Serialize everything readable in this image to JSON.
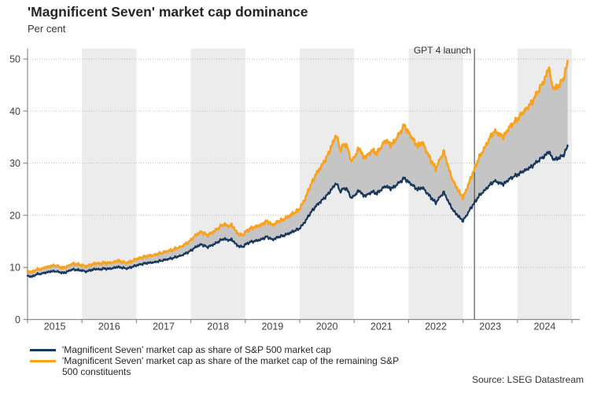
{
  "header": {
    "title": "'Magnificent Seven' market cap dominance",
    "subtitle": "Per cent"
  },
  "source": "Source: LSEG Datastream",
  "legend": [
    {
      "label": "'Magnificent Seven' market cap as share of S&P 500 market cap",
      "color": "#17375d"
    },
    {
      "label": "'Magnificent Seven' market cap as share of the market cap of the remaining S&P 500 constituents",
      "color": "#faa21c"
    }
  ],
  "chart_data": {
    "type": "line",
    "title": "'Magnificent Seven' market cap dominance",
    "ylabel": "Per cent",
    "x_range": [
      2015,
      2025
    ],
    "y_range": [
      0,
      52
    ],
    "y_ticks": [
      0,
      10,
      20,
      30,
      40,
      50
    ],
    "x_tick_labels": [
      "2015",
      "2016",
      "2017",
      "2018",
      "2019",
      "2020",
      "2021",
      "2022",
      "2023",
      "2024"
    ],
    "shaded_year_bands": [
      2016,
      2018,
      2020,
      2022,
      2024
    ],
    "grid": "dotted-horizontal",
    "legend_position": "bottom-left",
    "annotation": {
      "text": "GPT 4 launch",
      "x": 2023.21
    },
    "colors": {
      "band": "#ececec",
      "fill_between": "#c5c5c5",
      "grid": "#b9b9b9",
      "axis": "#8c8c8c",
      "tick_text": "#3f3f3f",
      "annotation_line": "#3a3a3a"
    },
    "render": {
      "noise_amplitude": [
        0.3,
        0.38
      ],
      "noise_step": 0.014
    },
    "series": [
      {
        "name": "'Magnificent Seven' market cap as share of S&P 500 market cap",
        "color": "#17375d",
        "points": [
          [
            2015.0,
            8.4
          ],
          [
            2015.08,
            8.2
          ],
          [
            2015.17,
            8.7
          ],
          [
            2015.25,
            8.8
          ],
          [
            2015.33,
            9.0
          ],
          [
            2015.42,
            9.2
          ],
          [
            2015.5,
            9.3
          ],
          [
            2015.58,
            9.1
          ],
          [
            2015.67,
            8.9
          ],
          [
            2015.75,
            9.3
          ],
          [
            2015.83,
            9.6
          ],
          [
            2015.92,
            9.5
          ],
          [
            2016.0,
            9.4
          ],
          [
            2016.08,
            9.2
          ],
          [
            2016.17,
            9.5
          ],
          [
            2016.25,
            9.7
          ],
          [
            2016.33,
            9.6
          ],
          [
            2016.42,
            9.8
          ],
          [
            2016.5,
            9.7
          ],
          [
            2016.58,
            9.9
          ],
          [
            2016.67,
            10.1
          ],
          [
            2016.75,
            9.9
          ],
          [
            2016.83,
            9.8
          ],
          [
            2016.92,
            10.1
          ],
          [
            2017.0,
            10.4
          ],
          [
            2017.17,
            10.8
          ],
          [
            2017.33,
            11.0
          ],
          [
            2017.5,
            11.4
          ],
          [
            2017.67,
            11.8
          ],
          [
            2017.83,
            12.3
          ],
          [
            2018.0,
            13.2
          ],
          [
            2018.1,
            14.0
          ],
          [
            2018.2,
            14.4
          ],
          [
            2018.3,
            13.9
          ],
          [
            2018.4,
            14.3
          ],
          [
            2018.5,
            14.9
          ],
          [
            2018.6,
            15.5
          ],
          [
            2018.7,
            15.2
          ],
          [
            2018.75,
            15.4
          ],
          [
            2018.85,
            14.2
          ],
          [
            2018.95,
            13.9
          ],
          [
            2019.0,
            14.4
          ],
          [
            2019.1,
            14.9
          ],
          [
            2019.2,
            15.1
          ],
          [
            2019.3,
            15.4
          ],
          [
            2019.4,
            15.9
          ],
          [
            2019.5,
            15.3
          ],
          [
            2019.6,
            15.8
          ],
          [
            2019.7,
            16.1
          ],
          [
            2019.8,
            16.5
          ],
          [
            2019.9,
            17.0
          ],
          [
            2020.0,
            17.5
          ],
          [
            2020.1,
            18.8
          ],
          [
            2020.2,
            20.5
          ],
          [
            2020.3,
            21.8
          ],
          [
            2020.4,
            22.8
          ],
          [
            2020.5,
            23.8
          ],
          [
            2020.6,
            25.2
          ],
          [
            2020.67,
            26.2
          ],
          [
            2020.75,
            24.5
          ],
          [
            2020.8,
            25.2
          ],
          [
            2020.87,
            25.0
          ],
          [
            2020.95,
            23.2
          ],
          [
            2021.0,
            23.8
          ],
          [
            2021.1,
            24.8
          ],
          [
            2021.17,
            23.7
          ],
          [
            2021.25,
            24.0
          ],
          [
            2021.33,
            24.5
          ],
          [
            2021.42,
            24.2
          ],
          [
            2021.5,
            25.0
          ],
          [
            2021.58,
            25.6
          ],
          [
            2021.67,
            25.1
          ],
          [
            2021.75,
            25.6
          ],
          [
            2021.83,
            26.3
          ],
          [
            2021.92,
            27.1
          ],
          [
            2022.0,
            26.4
          ],
          [
            2022.08,
            25.7
          ],
          [
            2022.17,
            24.9
          ],
          [
            2022.25,
            25.4
          ],
          [
            2022.33,
            24.4
          ],
          [
            2022.42,
            23.3
          ],
          [
            2022.5,
            22.4
          ],
          [
            2022.58,
            23.6
          ],
          [
            2022.65,
            24.4
          ],
          [
            2022.75,
            22.2
          ],
          [
            2022.83,
            20.8
          ],
          [
            2022.92,
            19.8
          ],
          [
            2023.0,
            18.9
          ],
          [
            2023.08,
            20.3
          ],
          [
            2023.16,
            21.6
          ],
          [
            2023.21,
            22.4
          ],
          [
            2023.3,
            23.8
          ],
          [
            2023.4,
            24.8
          ],
          [
            2023.5,
            25.9
          ],
          [
            2023.58,
            26.6
          ],
          [
            2023.67,
            26.2
          ],
          [
            2023.75,
            26.0
          ],
          [
            2023.83,
            26.8
          ],
          [
            2023.92,
            27.4
          ],
          [
            2024.0,
            27.8
          ],
          [
            2024.08,
            28.3
          ],
          [
            2024.17,
            28.8
          ],
          [
            2024.25,
            29.3
          ],
          [
            2024.33,
            30.0
          ],
          [
            2024.42,
            30.8
          ],
          [
            2024.5,
            31.4
          ],
          [
            2024.58,
            32.3
          ],
          [
            2024.63,
            31.0
          ],
          [
            2024.7,
            30.7
          ],
          [
            2024.78,
            31.1
          ],
          [
            2024.85,
            31.6
          ],
          [
            2024.92,
            33.2
          ]
        ]
      },
      {
        "name": "'Magnificent Seven' market cap as share of the market cap of the remaining S&P 500 constituents",
        "color": "#faa21c",
        "points": [
          [
            2015.0,
            9.3
          ],
          [
            2015.08,
            9.1
          ],
          [
            2015.17,
            9.6
          ],
          [
            2015.25,
            9.7
          ],
          [
            2015.33,
            10.0
          ],
          [
            2015.42,
            10.2
          ],
          [
            2015.5,
            10.4
          ],
          [
            2015.58,
            10.1
          ],
          [
            2015.67,
            9.9
          ],
          [
            2015.75,
            10.3
          ],
          [
            2015.83,
            10.7
          ],
          [
            2015.92,
            10.6
          ],
          [
            2016.0,
            10.4
          ],
          [
            2016.08,
            10.2
          ],
          [
            2016.17,
            10.5
          ],
          [
            2016.25,
            10.8
          ],
          [
            2016.33,
            10.7
          ],
          [
            2016.42,
            10.9
          ],
          [
            2016.5,
            10.8
          ],
          [
            2016.58,
            11.0
          ],
          [
            2016.67,
            11.3
          ],
          [
            2016.75,
            11.0
          ],
          [
            2016.83,
            10.9
          ],
          [
            2016.92,
            11.2
          ],
          [
            2017.0,
            11.6
          ],
          [
            2017.17,
            12.1
          ],
          [
            2017.33,
            12.4
          ],
          [
            2017.5,
            12.9
          ],
          [
            2017.67,
            13.4
          ],
          [
            2017.83,
            14.0
          ],
          [
            2018.0,
            15.2
          ],
          [
            2018.1,
            16.3
          ],
          [
            2018.2,
            16.8
          ],
          [
            2018.3,
            16.2
          ],
          [
            2018.4,
            16.7
          ],
          [
            2018.5,
            17.5
          ],
          [
            2018.6,
            18.3
          ],
          [
            2018.7,
            17.9
          ],
          [
            2018.75,
            18.2
          ],
          [
            2018.85,
            16.6
          ],
          [
            2018.95,
            16.1
          ],
          [
            2019.0,
            16.8
          ],
          [
            2019.1,
            17.5
          ],
          [
            2019.2,
            17.8
          ],
          [
            2019.3,
            18.2
          ],
          [
            2019.4,
            18.9
          ],
          [
            2019.5,
            18.1
          ],
          [
            2019.6,
            18.8
          ],
          [
            2019.7,
            19.2
          ],
          [
            2019.8,
            19.8
          ],
          [
            2019.9,
            20.5
          ],
          [
            2020.0,
            21.2
          ],
          [
            2020.1,
            23.2
          ],
          [
            2020.2,
            25.8
          ],
          [
            2020.3,
            27.9
          ],
          [
            2020.4,
            29.5
          ],
          [
            2020.5,
            31.2
          ],
          [
            2020.6,
            33.7
          ],
          [
            2020.67,
            35.5
          ],
          [
            2020.75,
            32.4
          ],
          [
            2020.8,
            33.7
          ],
          [
            2020.87,
            33.3
          ],
          [
            2020.95,
            30.2
          ],
          [
            2021.0,
            31.2
          ],
          [
            2021.1,
            33.0
          ],
          [
            2021.17,
            31.1
          ],
          [
            2021.25,
            31.6
          ],
          [
            2021.33,
            32.4
          ],
          [
            2021.42,
            31.9
          ],
          [
            2021.5,
            33.3
          ],
          [
            2021.58,
            34.4
          ],
          [
            2021.67,
            33.5
          ],
          [
            2021.75,
            34.4
          ],
          [
            2021.83,
            35.7
          ],
          [
            2021.92,
            37.2
          ],
          [
            2022.0,
            35.9
          ],
          [
            2022.08,
            34.6
          ],
          [
            2022.17,
            33.2
          ],
          [
            2022.25,
            34.1
          ],
          [
            2022.33,
            32.3
          ],
          [
            2022.42,
            30.4
          ],
          [
            2022.5,
            28.9
          ],
          [
            2022.58,
            30.9
          ],
          [
            2022.65,
            32.2
          ],
          [
            2022.75,
            28.5
          ],
          [
            2022.83,
            26.3
          ],
          [
            2022.92,
            24.7
          ],
          [
            2023.0,
            23.3
          ],
          [
            2023.08,
            25.5
          ],
          [
            2023.16,
            27.5
          ],
          [
            2023.21,
            28.9
          ],
          [
            2023.3,
            31.2
          ],
          [
            2023.4,
            33.0
          ],
          [
            2023.5,
            35.0
          ],
          [
            2023.58,
            36.2
          ],
          [
            2023.67,
            35.5
          ],
          [
            2023.75,
            35.1
          ],
          [
            2023.83,
            36.6
          ],
          [
            2023.92,
            37.7
          ],
          [
            2024.0,
            38.5
          ],
          [
            2024.08,
            39.5
          ],
          [
            2024.17,
            40.5
          ],
          [
            2024.25,
            41.5
          ],
          [
            2024.33,
            42.9
          ],
          [
            2024.42,
            44.6
          ],
          [
            2024.5,
            46.1
          ],
          [
            2024.58,
            48.5
          ],
          [
            2024.63,
            44.9
          ],
          [
            2024.7,
            44.3
          ],
          [
            2024.78,
            45.1
          ],
          [
            2024.85,
            46.4
          ],
          [
            2024.92,
            49.3
          ]
        ]
      }
    ]
  }
}
